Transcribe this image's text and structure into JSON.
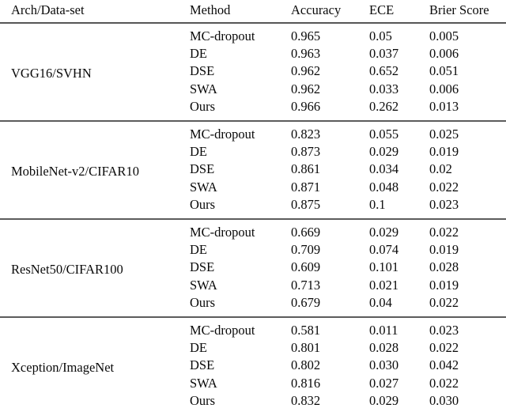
{
  "table": {
    "headers": [
      "Arch/Data-set",
      "Method",
      "Accuracy",
      "ECE",
      "Brier Score"
    ],
    "rule_color": "#5c5c5c",
    "groups": [
      {
        "arch": "VGG16/SVHN",
        "rows": [
          {
            "method": "MC-dropout",
            "accuracy": "0.965",
            "ece": "0.05",
            "brier": "0.005"
          },
          {
            "method": "DE",
            "accuracy": "0.963",
            "ece": "0.037",
            "brier": "0.006"
          },
          {
            "method": "DSE",
            "accuracy": "0.962",
            "ece": "0.652",
            "brier": "0.051"
          },
          {
            "method": "SWA",
            "accuracy": "0.962",
            "ece": "0.033",
            "brier": "0.006"
          },
          {
            "method": "Ours",
            "accuracy": "0.966",
            "ece": "0.262",
            "brier": "0.013"
          }
        ]
      },
      {
        "arch": "MobileNet-v2/CIFAR10",
        "rows": [
          {
            "method": "MC-dropout",
            "accuracy": "0.823",
            "ece": "0.055",
            "brier": "0.025"
          },
          {
            "method": "DE",
            "accuracy": "0.873",
            "ece": "0.029",
            "brier": "0.019"
          },
          {
            "method": "DSE",
            "accuracy": "0.861",
            "ece": "0.034",
            "brier": "0.02"
          },
          {
            "method": "SWA",
            "accuracy": "0.871",
            "ece": "0.048",
            "brier": "0.022"
          },
          {
            "method": "Ours",
            "accuracy": "0.875",
            "ece": "0.1",
            "brier": "0.023"
          }
        ]
      },
      {
        "arch": "ResNet50/CIFAR100",
        "rows": [
          {
            "method": "MC-dropout",
            "accuracy": "0.669",
            "ece": "0.029",
            "brier": "0.022"
          },
          {
            "method": "DE",
            "accuracy": "0.709",
            "ece": "0.074",
            "brier": "0.019"
          },
          {
            "method": "DSE",
            "accuracy": "0.609",
            "ece": "0.101",
            "brier": "0.028"
          },
          {
            "method": "SWA",
            "accuracy": "0.713",
            "ece": "0.021",
            "brier": "0.019"
          },
          {
            "method": "Ours",
            "accuracy": "0.679",
            "ece": "0.04",
            "brier": "0.022"
          }
        ]
      },
      {
        "arch": "Xception/ImageNet",
        "rows": [
          {
            "method": "MC-dropout",
            "accuracy": "0.581",
            "ece": "0.011",
            "brier": "0.023"
          },
          {
            "method": "DE",
            "accuracy": "0.801",
            "ece": "0.028",
            "brier": "0.022"
          },
          {
            "method": "DSE",
            "accuracy": "0.802",
            "ece": "0.030",
            "brier": "0.042"
          },
          {
            "method": "SWA",
            "accuracy": "0.816",
            "ece": "0.027",
            "brier": "0.022"
          },
          {
            "method": "Ours",
            "accuracy": "0.832",
            "ece": "0.029",
            "brier": "0.030"
          }
        ]
      }
    ]
  }
}
